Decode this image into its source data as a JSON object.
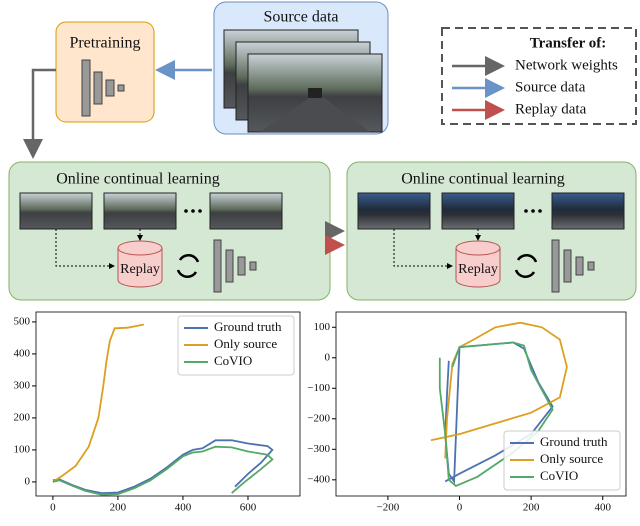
{
  "diagram": {
    "source": {
      "title": "Source data"
    },
    "pretraining": {
      "title": "Pretraining"
    },
    "transfer_legend": {
      "title": "Transfer of:",
      "items": [
        "Network weights",
        "Source data",
        "Replay data"
      ]
    },
    "stages": [
      {
        "title": "Online continual learning",
        "buffer": "Replay"
      },
      {
        "title": "Online continual learning",
        "buffer": "Replay"
      }
    ]
  },
  "chart_data": [
    {
      "type": "line",
      "legend": "upper right",
      "xlim": [
        -52,
        760
      ],
      "ylim": [
        -44,
        531
      ],
      "xticks": [
        0,
        200,
        400,
        600
      ],
      "yticks": [
        0,
        100,
        200,
        300,
        400,
        500
      ],
      "series": [
        {
          "name": "Ground truth",
          "color": "#4c72b0",
          "x": [
            0,
            20,
            60,
            100,
            150,
            200,
            250,
            300,
            350,
            400,
            430,
            460,
            500,
            550,
            600,
            660,
            675,
            640,
            600,
            560
          ],
          "values": [
            5,
            8,
            -10,
            -25,
            -35,
            -33,
            -15,
            10,
            45,
            85,
            100,
            105,
            130,
            130,
            120,
            112,
            100,
            60,
            25,
            -15
          ]
        },
        {
          "name": "Only source",
          "color": "#dd9f1f",
          "x": [
            0,
            30,
            70,
            110,
            140,
            155,
            165,
            175,
            190,
            230,
            280
          ],
          "values": [
            0,
            20,
            50,
            110,
            200,
            300,
            380,
            440,
            480,
            482,
            492
          ]
        },
        {
          "name": "CoVIO",
          "color": "#55a868",
          "x": [
            0,
            20,
            60,
            100,
            150,
            200,
            250,
            300,
            350,
            400,
            430,
            460,
            500,
            550,
            600,
            660,
            675,
            640,
            590,
            550
          ],
          "values": [
            0,
            5,
            -12,
            -28,
            -40,
            -38,
            -20,
            5,
            40,
            80,
            92,
            95,
            110,
            108,
            95,
            85,
            70,
            40,
            0,
            -35
          ]
        }
      ]
    },
    {
      "type": "line",
      "legend": "lower right",
      "xlim": [
        -345,
        465
      ],
      "ylim": [
        -453,
        150
      ],
      "xticks": [
        {
          "value": -200,
          "label": "−200"
        },
        0,
        200,
        400
      ],
      "yticks": [
        100,
        0,
        {
          "value": -100,
          "label": "−100"
        },
        {
          "value": -200,
          "label": "−200"
        },
        {
          "value": -300,
          "label": "−300"
        },
        {
          "value": -400,
          "label": "−400"
        }
      ],
      "series": [
        {
          "name": "Ground truth",
          "color": "#4c72b0",
          "x": [
            -30,
            -35,
            -40,
            -30,
            -15,
            0,
            50,
            100,
            150,
            180,
            220,
            260,
            200,
            100,
            0,
            -40
          ],
          "values": [
            -10,
            -120,
            -250,
            -380,
            -405,
            35,
            40,
            45,
            50,
            30,
            -80,
            -160,
            -250,
            -320,
            -380,
            -405
          ]
        },
        {
          "name": "Only source",
          "color": "#dd9f1f",
          "x": [
            -80,
            0,
            100,
            200,
            280,
            300,
            280,
            230,
            170,
            100,
            40,
            0,
            -20,
            -35,
            -40
          ],
          "values": [
            -270,
            -250,
            -215,
            -180,
            -130,
            -30,
            60,
            100,
            115,
            100,
            60,
            35,
            -20,
            -200,
            -330
          ]
        },
        {
          "name": "CoVIO",
          "color": "#55a868",
          "x": [
            -55,
            -55,
            -40,
            -30,
            -10,
            50,
            150,
            220,
            260,
            200,
            180,
            150,
            100,
            50,
            0,
            -20
          ],
          "values": [
            0,
            -100,
            -250,
            -400,
            -420,
            -390,
            -310,
            -240,
            -170,
            -40,
            40,
            50,
            45,
            40,
            35,
            -30
          ]
        }
      ]
    }
  ]
}
